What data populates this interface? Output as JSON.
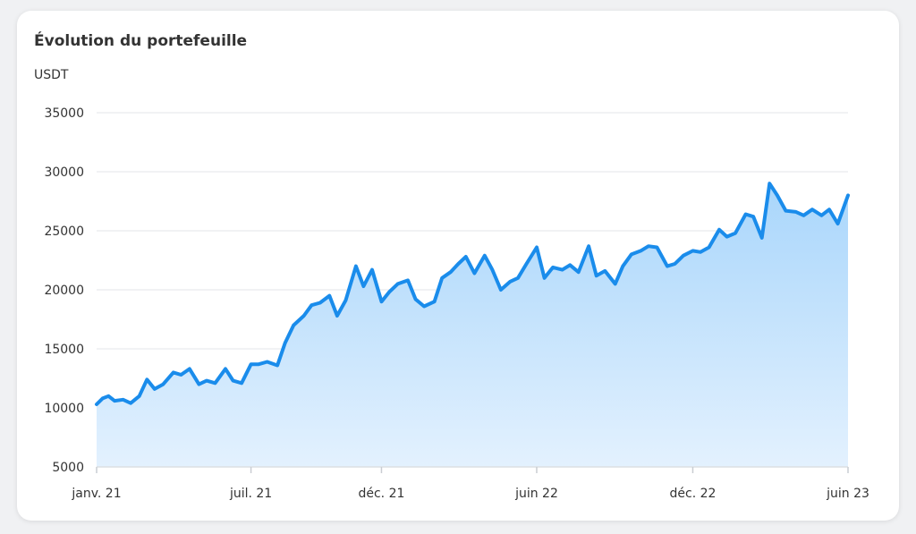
{
  "card": {
    "title": "Évolution du portefeuille",
    "unit": "USDT"
  },
  "chart_data": {
    "type": "area",
    "ylabel": "USDT",
    "ylim": [
      5000,
      35000
    ],
    "yticks": [
      "35000",
      "30000",
      "25000",
      "20000",
      "15000",
      "10000",
      "5000"
    ],
    "ytick_values": [
      35000,
      30000,
      25000,
      20000,
      15000,
      10000,
      5000
    ],
    "xlim": [
      "2021-01-01",
      "2023-06-01"
    ],
    "xticks": [
      {
        "label": "janv. 21",
        "date": "2021-01-01"
      },
      {
        "label": "juil. 21",
        "date": "2021-07-01"
      },
      {
        "label": "déc. 21",
        "date": "2021-12-01"
      },
      {
        "label": "juin 22",
        "date": "2022-06-01"
      },
      {
        "label": "déc. 22",
        "date": "2022-12-01"
      },
      {
        "label": "juin 23",
        "date": "2023-06-01"
      }
    ],
    "grid": true,
    "colors": {
      "line": "#1a8ceb",
      "fill_top": "#a9d6fb",
      "fill_bottom": "#e3f1fe",
      "grid": "#e3e5e8"
    },
    "series": [
      {
        "x": [
          "2021-01-01",
          "2021-01-08",
          "2021-01-15",
          "2021-01-22",
          "2021-02-01",
          "2021-02-10",
          "2021-02-20",
          "2021-03-01",
          "2021-03-10",
          "2021-03-20",
          "2021-04-01",
          "2021-04-10",
          "2021-04-20",
          "2021-05-01",
          "2021-05-10",
          "2021-05-20",
          "2021-06-01",
          "2021-06-10",
          "2021-06-20",
          "2021-07-01",
          "2021-07-10",
          "2021-07-20",
          "2021-08-01",
          "2021-08-10",
          "2021-08-20",
          "2021-09-01",
          "2021-09-10",
          "2021-09-20",
          "2021-10-01",
          "2021-10-10",
          "2021-10-20",
          "2021-11-01",
          "2021-11-10",
          "2021-11-20",
          "2021-12-01",
          "2021-12-10",
          "2021-12-20",
          "2022-01-01",
          "2022-01-10",
          "2022-01-20",
          "2022-02-01",
          "2022-02-10",
          "2022-02-20",
          "2022-03-01",
          "2022-03-10",
          "2022-03-20",
          "2022-04-01",
          "2022-04-10",
          "2022-04-20",
          "2022-05-01",
          "2022-05-10",
          "2022-05-20",
          "2022-06-01",
          "2022-06-10",
          "2022-06-20",
          "2022-07-01",
          "2022-07-10",
          "2022-07-20",
          "2022-08-01",
          "2022-08-10",
          "2022-08-20",
          "2022-09-01",
          "2022-09-10",
          "2022-09-20",
          "2022-10-01",
          "2022-10-10",
          "2022-10-20",
          "2022-11-01",
          "2022-11-10",
          "2022-11-20",
          "2022-12-01",
          "2022-12-10",
          "2022-12-20",
          "2023-01-01",
          "2023-01-10",
          "2023-01-20",
          "2023-02-01",
          "2023-02-10",
          "2023-02-20",
          "2023-03-01",
          "2023-03-10",
          "2023-03-20",
          "2023-04-01",
          "2023-04-10",
          "2023-04-20",
          "2023-05-01",
          "2023-05-10",
          "2023-05-20",
          "2023-06-01"
        ],
        "y": [
          10300,
          10800,
          11000,
          10600,
          10700,
          10400,
          11000,
          12400,
          11600,
          12000,
          13000,
          12800,
          13300,
          12000,
          12300,
          12100,
          13300,
          12300,
          12100,
          13700,
          13700,
          13900,
          13600,
          15500,
          17000,
          17800,
          18700,
          18900,
          19500,
          17800,
          19100,
          22000,
          20300,
          21700,
          19000,
          19800,
          20500,
          20800,
          19200,
          18600,
          19000,
          21000,
          21500,
          22200,
          22800,
          21400,
          22900,
          21700,
          20000,
          20700,
          21000,
          22200,
          23600,
          21000,
          21900,
          21700,
          22100,
          21500,
          23700,
          21200,
          21600,
          20500,
          22000,
          23000,
          23300,
          23700,
          23600,
          22000,
          22200,
          22900,
          23300,
          23200,
          23600,
          25100,
          24500,
          24800,
          26400,
          26200,
          24400,
          29000,
          28000,
          26700,
          26600,
          26300,
          26800,
          26300,
          26800,
          25600,
          28000
        ]
      }
    ]
  }
}
